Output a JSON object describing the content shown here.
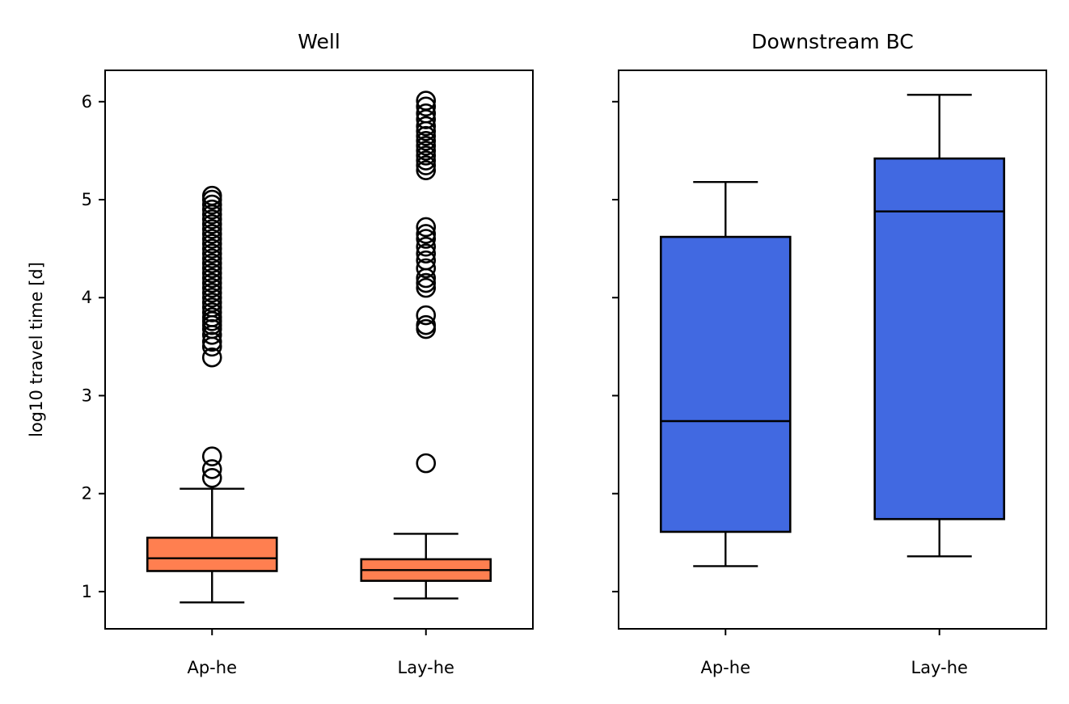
{
  "chart_data": [
    {
      "type": "box",
      "title": "Well",
      "xlabel": "",
      "ylabel": "log10 travel time [d]",
      "ylim": [
        0.62,
        6.32
      ],
      "yticks": [
        1,
        2,
        3,
        4,
        5,
        6
      ],
      "categories": [
        "Ap-he",
        "Lay-he"
      ],
      "box_color": "#FF7F50",
      "boxes": [
        {
          "category": "Ap-he",
          "whisker_low": 0.89,
          "q1": 1.21,
          "median": 1.34,
          "q3": 1.55,
          "whisker_high": 2.05,
          "outliers": [
            2.16,
            2.25,
            2.38,
            3.39,
            3.5,
            3.55,
            3.62,
            3.68,
            3.72,
            3.76,
            3.8,
            3.85,
            3.9,
            3.95,
            4.0,
            4.05,
            4.1,
            4.15,
            4.2,
            4.25,
            4.3,
            4.35,
            4.4,
            4.45,
            4.5,
            4.55,
            4.6,
            4.65,
            4.7,
            4.75,
            4.8,
            4.85,
            4.9,
            4.95,
            5.0,
            5.04
          ]
        },
        {
          "category": "Lay-he",
          "whisker_low": 0.93,
          "q1": 1.11,
          "median": 1.22,
          "q3": 1.33,
          "whisker_high": 1.59,
          "outliers": [
            2.31,
            3.68,
            3.72,
            3.82,
            4.1,
            4.15,
            4.2,
            4.3,
            4.38,
            4.45,
            4.52,
            4.6,
            4.65,
            4.72,
            5.3,
            5.35,
            5.4,
            5.45,
            5.5,
            5.55,
            5.6,
            5.65,
            5.7,
            5.75,
            5.82,
            5.88,
            5.95,
            6.01
          ]
        }
      ]
    },
    {
      "type": "box",
      "title": "Downstream BC",
      "xlabel": "",
      "ylabel": "",
      "ylim": [
        0.62,
        6.32
      ],
      "shared_y": true,
      "categories": [
        "Ap-he",
        "Lay-he"
      ],
      "box_color": "#4169E1",
      "boxes": [
        {
          "category": "Ap-he",
          "whisker_low": 1.26,
          "q1": 1.61,
          "median": 2.74,
          "q3": 4.62,
          "whisker_high": 5.18,
          "outliers": []
        },
        {
          "category": "Lay-he",
          "whisker_low": 1.36,
          "q1": 1.74,
          "median": 4.88,
          "q3": 5.42,
          "whisker_high": 6.07,
          "outliers": []
        }
      ]
    }
  ]
}
